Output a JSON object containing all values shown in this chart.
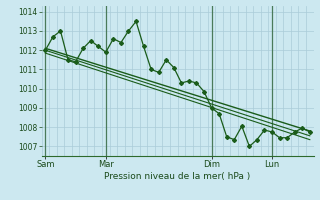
{
  "bg_color": "#cce8f0",
  "grid_color": "#aaccd8",
  "line_color": "#1a5c1a",
  "axis_color": "#2d6a2d",
  "xlabel": "Pression niveau de la mer( hPa )",
  "ylim": [
    1006.5,
    1014.3
  ],
  "yticks": [
    1007,
    1008,
    1009,
    1010,
    1011,
    1012,
    1013,
    1014
  ],
  "day_labels": [
    "Sam",
    "Mar",
    "Dim",
    "Lun"
  ],
  "day_positions": [
    0,
    8,
    22,
    30
  ],
  "xlim": [
    -0.5,
    35.5
  ],
  "series1_x": [
    0,
    1,
    2,
    3,
    4,
    5,
    6,
    7,
    8,
    9,
    10,
    11,
    12,
    13,
    14,
    15,
    16,
    17,
    18,
    19,
    20,
    21,
    22,
    23,
    24,
    25,
    26,
    27,
    28,
    29,
    30,
    31,
    32,
    33,
    34,
    35
  ],
  "series1_y": [
    1012.0,
    1012.7,
    1013.0,
    1011.5,
    1011.4,
    1012.1,
    1012.5,
    1012.2,
    1011.9,
    1012.6,
    1012.4,
    1013.0,
    1013.5,
    1012.2,
    1011.0,
    1010.85,
    1011.5,
    1011.1,
    1010.3,
    1010.4,
    1010.3,
    1009.85,
    1009.0,
    1008.7,
    1007.5,
    1007.35,
    1008.05,
    1007.0,
    1007.35,
    1007.85,
    1007.75,
    1007.45,
    1007.45,
    1007.75,
    1007.95,
    1007.75
  ],
  "trend1_x": [
    0,
    35
  ],
  "trend1_y": [
    1012.1,
    1007.8
  ],
  "trend2_x": [
    0,
    35
  ],
  "trend2_y": [
    1012.0,
    1007.55
  ],
  "trend3_x": [
    0,
    35
  ],
  "trend3_y": [
    1011.85,
    1007.35
  ]
}
